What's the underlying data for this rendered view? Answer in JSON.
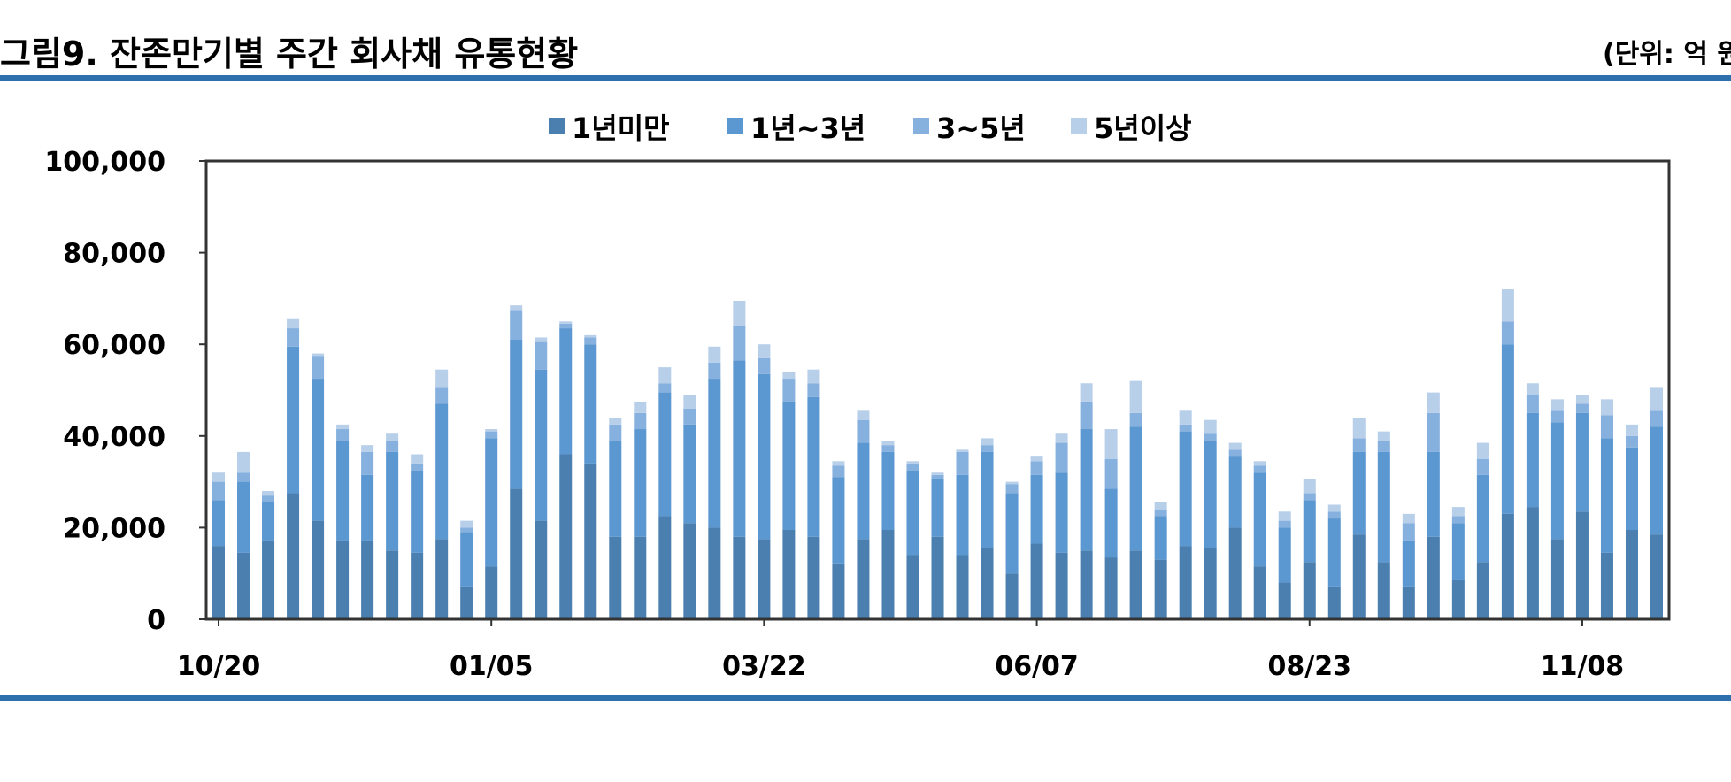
{
  "header": {
    "title": "그림9. 잔존만기별 주간 회사채 유통현황",
    "unit": "(단위: 억 원"
  },
  "colors": {
    "rule": "#2e6fad",
    "series": [
      "#4a7fb0",
      "#5b97d0",
      "#86b0de",
      "#b8cfea"
    ]
  },
  "chart_data": {
    "type": "bar",
    "stacked": true,
    "legend_position": "top-center",
    "grid": false,
    "ylim": [
      0,
      100000
    ],
    "y_ticks": [
      "0",
      "20,000",
      "40,000",
      "60,000",
      "80,000",
      "100,000"
    ],
    "x_tick_labels": [
      {
        "index": 0,
        "label": "10/20"
      },
      {
        "index": 11,
        "label": "01/05"
      },
      {
        "index": 22,
        "label": "03/22"
      },
      {
        "index": 33,
        "label": "06/07"
      },
      {
        "index": 44,
        "label": "08/23"
      },
      {
        "index": 55,
        "label": "11/08"
      }
    ],
    "series": [
      {
        "name": "1년미만",
        "values": [
          16000,
          14500,
          17000,
          27500,
          21500,
          17000,
          17000,
          15000,
          14500,
          17500,
          7000,
          11500,
          28500,
          21500,
          36000,
          34000,
          18000,
          18000,
          22500,
          21000,
          20000,
          18000,
          17500,
          19500,
          18000,
          12000,
          17500,
          19500,
          14000,
          18000,
          14000,
          15500,
          10000,
          16500,
          14500,
          15000,
          13500,
          15000,
          13000,
          16000,
          15500,
          20000,
          11500,
          8000,
          12500,
          7000,
          18500,
          12500,
          7000,
          18000,
          8500,
          12500,
          23000,
          24500,
          17500,
          23500,
          14500,
          19500,
          18500
        ]
      },
      {
        "name": "1년~3년",
        "values": [
          10000,
          15500,
          8500,
          32000,
          31000,
          22000,
          14500,
          21500,
          18000,
          29500,
          12000,
          28000,
          32500,
          33000,
          27500,
          26000,
          21000,
          23500,
          27000,
          21500,
          32500,
          38500,
          36000,
          28000,
          30500,
          19000,
          21000,
          17000,
          18500,
          12500,
          17500,
          21000,
          17500,
          15000,
          17500,
          26500,
          15000,
          27000,
          9500,
          25000,
          23500,
          15500,
          20500,
          12000,
          13500,
          15000,
          18000,
          24000,
          10000,
          18500,
          12500,
          19000,
          37000,
          20500,
          25500,
          21500,
          25000,
          18000,
          23500
        ]
      },
      {
        "name": "3~5년",
        "values": [
          4000,
          2000,
          1500,
          4000,
          5000,
          2500,
          5000,
          2500,
          1500,
          3500,
          1000,
          1500,
          6500,
          6000,
          1000,
          1500,
          3500,
          3500,
          2000,
          3500,
          3500,
          7500,
          3500,
          5000,
          3000,
          2500,
          5000,
          1500,
          1500,
          1000,
          5000,
          1500,
          2000,
          3000,
          6500,
          6000,
          6500,
          3000,
          1500,
          1500,
          1500,
          1500,
          1500,
          1500,
          1500,
          1500,
          3000,
          2500,
          4000,
          8500,
          1500,
          3500,
          5000,
          4000,
          2500,
          2000,
          5000,
          2500,
          3500
        ]
      },
      {
        "name": "5년이상",
        "values": [
          2000,
          4500,
          1000,
          2000,
          500,
          1000,
          1500,
          1500,
          2000,
          4000,
          1500,
          500,
          1000,
          1000,
          500,
          500,
          1500,
          2500,
          3500,
          3000,
          3500,
          5500,
          3000,
          1500,
          3000,
          1000,
          2000,
          1000,
          500,
          500,
          500,
          1500,
          500,
          1000,
          2000,
          4000,
          6500,
          7000,
          1500,
          3000,
          3000,
          1500,
          1000,
          2000,
          3000,
          1500,
          4500,
          2000,
          2000,
          4500,
          2000,
          3500,
          7000,
          2500,
          2500,
          2000,
          3500,
          2500,
          5000
        ]
      }
    ]
  }
}
